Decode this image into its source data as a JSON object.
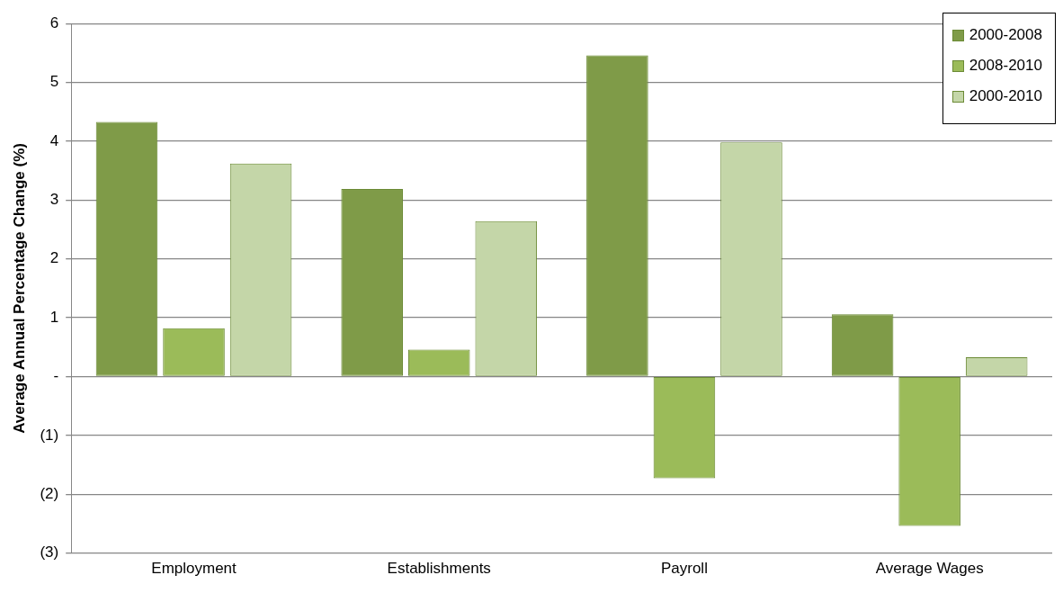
{
  "chart_data": {
    "type": "bar",
    "ylabel": "Average Annual Percentage Change (%)",
    "categories": [
      "Employment",
      "Establishments",
      "Payroll",
      "Average Wages"
    ],
    "series": [
      {
        "name": "2000-2008",
        "color": "#7f9b48",
        "values": [
          4.33,
          3.19,
          5.46,
          1.06
        ]
      },
      {
        "name": "2008-2010",
        "color": "#9bbb59",
        "values": [
          0.82,
          0.46,
          -1.73,
          -2.54
        ]
      },
      {
        "name": "2000-2010",
        "color": "#c4d6a8",
        "values": [
          3.62,
          2.64,
          3.98,
          0.33
        ]
      }
    ],
    "ylim": [
      -3,
      6
    ],
    "yticks": [
      {
        "value": -3,
        "label": "(3)"
      },
      {
        "value": -2,
        "label": "(2)"
      },
      {
        "value": -1,
        "label": "(1)"
      },
      {
        "value": 0,
        "label": "-"
      },
      1,
      2,
      3,
      4,
      5,
      6
    ],
    "grid": "y",
    "legend": "top right"
  }
}
